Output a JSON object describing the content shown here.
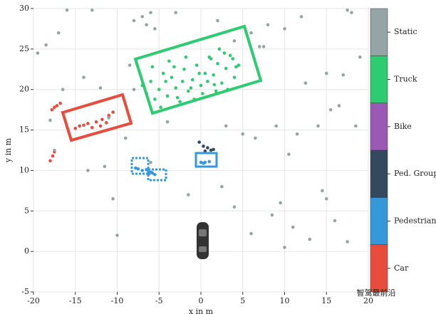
{
  "chart_data": {
    "type": "scatter",
    "xlabel": "x in m",
    "ylabel": "y in m",
    "xlim": [
      -20,
      20
    ],
    "ylim": [
      -5,
      30
    ],
    "xticks": [
      -20,
      -15,
      -10,
      -5,
      0,
      5,
      10,
      15,
      20
    ],
    "yticks": [
      -5,
      0,
      5,
      10,
      15,
      20,
      25,
      30
    ],
    "grid": true,
    "watermark": "智驾最前沿",
    "series": [
      {
        "name": "Car",
        "color": "#e74c3c",
        "x": [
          -17.5,
          -17.2,
          -17.8,
          -16.8,
          -18,
          -17.7,
          -17.5,
          -15,
          -14.5,
          -13.5,
          -12.5,
          -11.8,
          -11,
          -10.5,
          -12,
          -13,
          -14,
          -11.3
        ],
        "y": [
          17.8,
          18,
          17.5,
          18.3,
          11.2,
          11.8,
          12.3,
          15.2,
          15.5,
          15.8,
          16,
          16.3,
          16.8,
          17.2,
          15.5,
          15.3,
          15.6,
          15.9
        ]
      },
      {
        "name": "Pedestrian",
        "color": "#3498db",
        "x": [
          -7.5,
          -7,
          -6.5,
          -7.8,
          -6,
          -5.5,
          -5.8,
          0,
          0.5,
          1,
          0.3,
          -6.2
        ],
        "y": [
          10.2,
          10,
          10.1,
          10.3,
          9.8,
          9.5,
          9.7,
          11,
          11,
          11.1,
          10.9,
          9.6
        ]
      },
      {
        "name": "Ped. Group",
        "color": "#34495e",
        "x": [
          -0.2,
          0.3,
          0.8,
          1.2,
          1.5,
          0.5
        ],
        "y": [
          13.5,
          13,
          12.8,
          12.5,
          12.6,
          12.4
        ]
      },
      {
        "name": "Bike",
        "color": "#9b59b6",
        "x": [],
        "y": []
      },
      {
        "name": "Truck",
        "color": "#2ecc71",
        "x": [
          -7,
          -6.5,
          -6,
          -5.5,
          -5,
          -4.5,
          -4,
          -3.5,
          -3,
          -2.5,
          -2,
          -1.5,
          -1,
          -0.5,
          0,
          0.5,
          1,
          1.5,
          2,
          2.5,
          3,
          3.5,
          4,
          4.5,
          -5.8,
          -4.8,
          -3.8,
          -2.8,
          -1.8,
          -0.8,
          0.2,
          1.2,
          2.2,
          3.2,
          4.2,
          -3.2,
          -2.2,
          -1.2,
          0.8,
          1.8,
          2.8,
          3.8,
          -4.2,
          -0.2,
          1.6
        ],
        "y": [
          20.5,
          19.5,
          21,
          18.8,
          20,
          22,
          19.2,
          21.5,
          20.2,
          18.5,
          22.5,
          19.8,
          21.2,
          23,
          20.5,
          22,
          24,
          21.8,
          23.2,
          20.8,
          22.6,
          24.2,
          21.5,
          23,
          22.8,
          17.8,
          23.5,
          19,
          24,
          18.8,
          19.5,
          23.8,
          25,
          20,
          22.8,
          22.8,
          21,
          20.2,
          21,
          19.8,
          24.5,
          23.8,
          21,
          22,
          20.6
        ]
      },
      {
        "name": "Static",
        "color": "#95a5a6",
        "x": [
          -19.5,
          -18.5,
          -17,
          -16,
          -13,
          -8,
          -7,
          -6.5,
          -6,
          -5.5,
          -3,
          2,
          4,
          6,
          7.5,
          8,
          10,
          12,
          15,
          17.5,
          18,
          19,
          -18,
          -17.5,
          -16.5,
          -14,
          -12,
          -11,
          -9,
          -8.5,
          -8,
          -6,
          -4,
          3,
          5,
          6.5,
          7,
          9,
          10.5,
          11.5,
          12.5,
          14,
          15.5,
          16.5,
          17,
          18.5,
          -13.5,
          -11.5,
          -10.5,
          -10,
          -1.5,
          2.5,
          4,
          6,
          8.5,
          9.5,
          10,
          11,
          13,
          14.5,
          15,
          16,
          17.5
        ],
        "y": [
          24.5,
          25.5,
          27,
          29.8,
          29.8,
          28.5,
          29,
          28,
          29.5,
          27.5,
          29.5,
          28.5,
          26,
          27,
          25.3,
          28,
          27.5,
          29,
          22,
          29.8,
          29.5,
          24,
          16.2,
          12.5,
          20,
          21.5,
          20.2,
          16.5,
          14,
          23,
          20,
          11,
          16,
          15.5,
          14.5,
          14,
          25.3,
          15.5,
          12,
          14.5,
          20.8,
          15.5,
          17.5,
          18,
          21.8,
          15.5,
          10,
          10.5,
          6.5,
          2,
          7,
          8,
          5.5,
          2.2,
          4.5,
          6,
          0.5,
          3,
          1.5,
          7.5,
          6.5,
          3.8,
          1.2
        ]
      }
    ]
  }
}
